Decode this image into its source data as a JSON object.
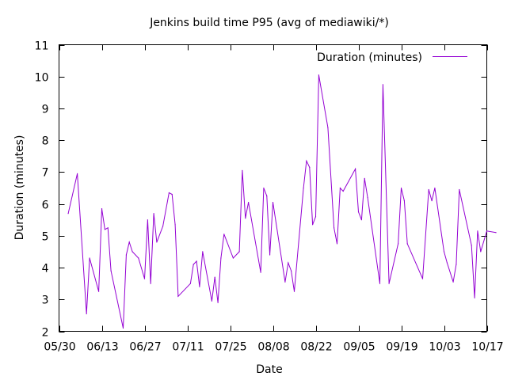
{
  "chart_data": {
    "type": "line",
    "title": "Jenkins build time P95 (avg of mediawiki/*)",
    "xlabel": "Date",
    "ylabel": "Duration (minutes)",
    "xlim": [
      "05/30",
      "10/17"
    ],
    "ylim": [
      2,
      11
    ],
    "x_ticks": [
      "05/30",
      "06/13",
      "06/27",
      "07/11",
      "07/25",
      "08/08",
      "08/22",
      "09/05",
      "09/19",
      "10/03",
      "10/17"
    ],
    "y_ticks": [
      2,
      3,
      4,
      5,
      6,
      7,
      8,
      9,
      10,
      11
    ],
    "grid": false,
    "legend_position": "top-right",
    "series": [
      {
        "name": "Duration (minutes)",
        "color": "#9400d3",
        "points": [
          [
            "06/02",
            5.7
          ],
          [
            "06/05",
            6.95
          ],
          [
            "06/08",
            2.55
          ],
          [
            "06/09",
            4.3
          ],
          [
            "06/12",
            3.25
          ],
          [
            "06/13",
            5.85
          ],
          [
            "06/14",
            5.2
          ],
          [
            "06/15",
            5.25
          ],
          [
            "06/16",
            3.9
          ],
          [
            "06/20",
            2.1
          ],
          [
            "06/21",
            4.4
          ],
          [
            "06/22",
            4.8
          ],
          [
            "06/23",
            4.5
          ],
          [
            "06/25",
            4.3
          ],
          [
            "06/27",
            3.65
          ],
          [
            "06/28",
            5.5
          ],
          [
            "06/29",
            3.5
          ],
          [
            "06/30",
            5.7
          ],
          [
            "07/01",
            4.8
          ],
          [
            "07/03",
            5.3
          ],
          [
            "07/05",
            6.35
          ],
          [
            "07/06",
            6.3
          ],
          [
            "07/07",
            5.35
          ],
          [
            "07/08",
            3.1
          ],
          [
            "07/12",
            3.5
          ],
          [
            "07/13",
            4.1
          ],
          [
            "07/14",
            4.2
          ],
          [
            "07/15",
            3.4
          ],
          [
            "07/16",
            4.5
          ],
          [
            "07/19",
            2.95
          ],
          [
            "07/20",
            3.7
          ],
          [
            "07/21",
            2.9
          ],
          [
            "07/22",
            4.3
          ],
          [
            "07/23",
            5.05
          ],
          [
            "07/26",
            4.3
          ],
          [
            "07/28",
            4.5
          ],
          [
            "07/29",
            7.05
          ],
          [
            "07/30",
            5.55
          ],
          [
            "07/31",
            6.05
          ],
          [
            "08/04",
            3.85
          ],
          [
            "08/05",
            6.5
          ],
          [
            "08/06",
            6.25
          ],
          [
            "08/07",
            4.4
          ],
          [
            "08/08",
            6.05
          ],
          [
            "08/12",
            3.55
          ],
          [
            "08/13",
            4.15
          ],
          [
            "08/14",
            3.9
          ],
          [
            "08/15",
            3.25
          ],
          [
            "08/18",
            6.5
          ],
          [
            "08/19",
            7.35
          ],
          [
            "08/20",
            7.15
          ],
          [
            "08/21",
            5.35
          ],
          [
            "08/22",
            5.6
          ],
          [
            "08/23",
            10.05
          ],
          [
            "08/26",
            8.4
          ],
          [
            "08/28",
            5.25
          ],
          [
            "08/29",
            4.75
          ],
          [
            "08/30",
            6.5
          ],
          [
            "08/31",
            6.4
          ],
          [
            "09/04",
            7.1
          ],
          [
            "09/05",
            5.75
          ],
          [
            "09/06",
            5.5
          ],
          [
            "09/07",
            6.8
          ],
          [
            "09/08",
            6.2
          ],
          [
            "09/12",
            3.5
          ],
          [
            "09/13",
            9.75
          ],
          [
            "09/15",
            3.5
          ],
          [
            "09/18",
            4.75
          ],
          [
            "09/19",
            6.5
          ],
          [
            "09/20",
            6.1
          ],
          [
            "09/21",
            4.75
          ],
          [
            "09/26",
            3.65
          ],
          [
            "09/28",
            6.45
          ],
          [
            "09/29",
            6.1
          ],
          [
            "09/30",
            6.5
          ],
          [
            "10/03",
            4.5
          ],
          [
            "10/04",
            4.15
          ],
          [
            "10/06",
            3.55
          ],
          [
            "10/07",
            4.1
          ],
          [
            "10/08",
            6.45
          ],
          [
            "10/12",
            4.7
          ],
          [
            "10/13",
            3.05
          ],
          [
            "10/14",
            5.15
          ],
          [
            "10/15",
            4.5
          ],
          [
            "10/17",
            5.15
          ],
          [
            "10/20",
            5.1
          ]
        ]
      }
    ]
  }
}
